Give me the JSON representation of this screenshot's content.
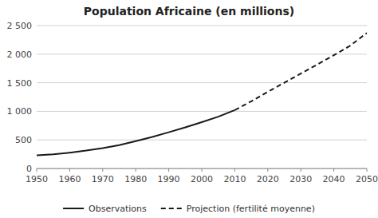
{
  "chart_data": {
    "type": "line",
    "title": "Population Africaine (en millions)",
    "x": [
      1950,
      1955,
      1960,
      1965,
      1970,
      1975,
      1980,
      1985,
      1990,
      1995,
      2000,
      2005,
      2010,
      2015,
      2020,
      2025,
      2030,
      2035,
      2040,
      2045,
      2050
    ],
    "series": [
      {
        "name": "Observations",
        "color": "#1a1a1a",
        "line_style": "solid",
        "values": [
          229,
          247,
          277,
          313,
          357,
          408,
          477,
          551,
          634,
          719,
          811,
          906,
          1022,
          null,
          null,
          null,
          null,
          null,
          null,
          null,
          null
        ]
      },
      {
        "name": "Projection (fertilité moyenne)",
        "color": "#1a1a1a",
        "line_style": "dashed",
        "values": [
          null,
          null,
          null,
          null,
          null,
          null,
          null,
          null,
          null,
          null,
          null,
          null,
          1022,
          1175,
          1341,
          1500,
          1660,
          1820,
          1980,
          2150,
          2370
        ]
      }
    ],
    "xlim": [
      1950,
      2050
    ],
    "ylim": [
      0,
      2500
    ],
    "xticks": [
      1950,
      1960,
      1970,
      1980,
      1990,
      2000,
      2010,
      2020,
      2030,
      2040,
      2050
    ],
    "yticks": [
      0,
      500,
      {
        "value": 1000,
        "label": "1 000"
      },
      {
        "value": 1500,
        "label": "1 500"
      },
      {
        "value": 2000,
        "label": "2 000"
      },
      {
        "value": 2500,
        "label": "2 500"
      }
    ],
    "grid": true,
    "legend": "bottom"
  }
}
